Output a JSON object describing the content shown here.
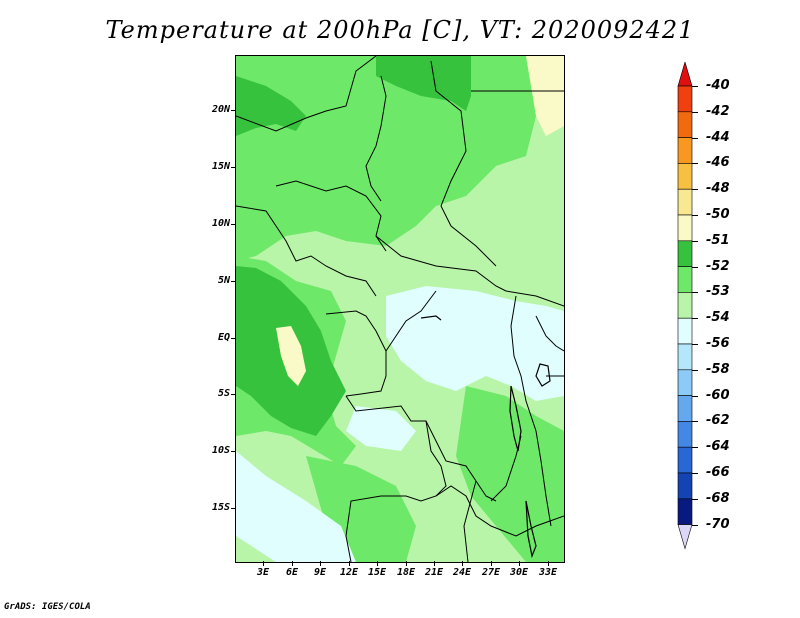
{
  "title": "Temperature at 200hPa [C], VT: 2020092421",
  "footer": "GrADS: IGES/COLA",
  "lat_labels": [
    "20N",
    "15N",
    "10N",
    "5N",
    "EQ",
    "5S",
    "10S",
    "15S"
  ],
  "lon_labels": [
    "3E",
    "6E",
    "9E",
    "12E",
    "15E",
    "18E",
    "21E",
    "24E",
    "27E",
    "30E",
    "33E"
  ],
  "colorbar": {
    "labels": [
      "-40",
      "-42",
      "-44",
      "-46",
      "-48",
      "-50",
      "-51",
      "-52",
      "-53",
      "-54",
      "-56",
      "-58",
      "-60",
      "-62",
      "-64",
      "-66",
      "-68",
      "-70"
    ],
    "colors": [
      "#e01010",
      "#f04010",
      "#f06a10",
      "#f89820",
      "#f8c040",
      "#f8e890",
      "#fafac8",
      "#36c23c",
      "#6ee868",
      "#b8f5a8",
      "#e0fefe",
      "#b4e6fc",
      "#8ccaf8",
      "#64a8ef",
      "#4488e6",
      "#2868d6",
      "#1444b4",
      "#081a80",
      "#dcd6f8"
    ]
  },
  "map_colors": {
    "level_minus51": "#fafac8",
    "level_minus52": "#36c23c",
    "level_minus53": "#6ee868",
    "level_minus54": "#b8f5a8",
    "level_minus56": "#e0fefe"
  }
}
